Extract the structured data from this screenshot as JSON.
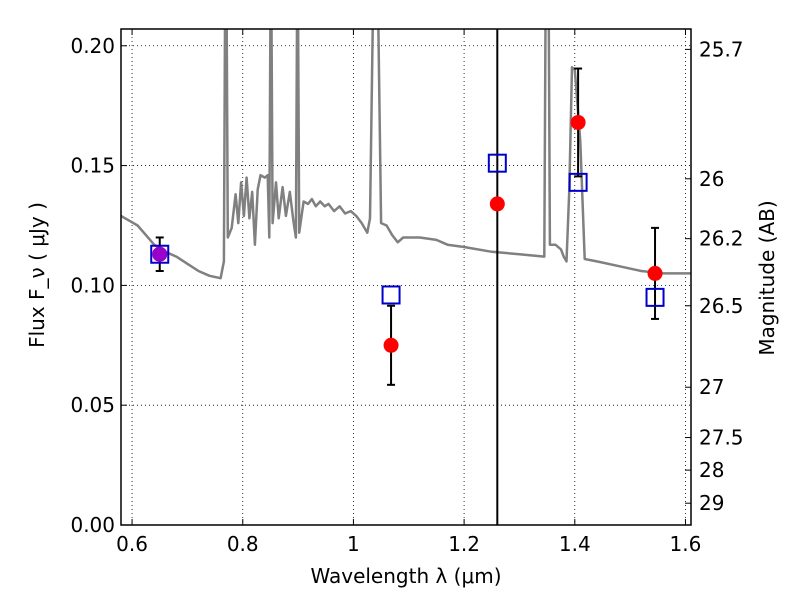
{
  "chart_data": {
    "type": "scatter",
    "xlabel": "Wavelength  λ (μm)",
    "ylabel": "Flux  F_ν  ( μJy )",
    "y2label": "Magnitude (AB)",
    "xlim": [
      0.58,
      1.61
    ],
    "ylim": [
      0.0,
      0.207
    ],
    "xticks": [
      {
        "value": 0.6,
        "label": "0.6"
      },
      {
        "value": 0.8,
        "label": "0.8"
      },
      {
        "value": 1.0,
        "label": "1"
      },
      {
        "value": 1.2,
        "label": "1.2"
      },
      {
        "value": 1.4,
        "label": "1.4"
      },
      {
        "value": 1.6,
        "label": "1.6"
      }
    ],
    "yticks": [
      {
        "value": 0.0,
        "label": "0.00"
      },
      {
        "value": 0.05,
        "label": "0.05"
      },
      {
        "value": 0.1,
        "label": "0.10"
      },
      {
        "value": 0.15,
        "label": "0.15"
      },
      {
        "value": 0.2,
        "label": "0.20"
      }
    ],
    "mag_ticks": [
      {
        "value": 0.1985,
        "label": "25.7"
      },
      {
        "value": 0.1445,
        "label": "26"
      },
      {
        "value": 0.1195,
        "label": "26.2"
      },
      {
        "value": 0.0915,
        "label": "26.5"
      },
      {
        "value": 0.0575,
        "label": "27"
      },
      {
        "value": 0.0365,
        "label": "27.5"
      },
      {
        "value": 0.0229,
        "label": "28"
      },
      {
        "value": 0.0091,
        "label": "29"
      }
    ],
    "grid": true,
    "vline_x": 1.26,
    "model_sed": {
      "color": "#808080",
      "points": [
        [
          0.58,
          0.129
        ],
        [
          0.595,
          0.127
        ],
        [
          0.61,
          0.125
        ],
        [
          0.625,
          0.121
        ],
        [
          0.64,
          0.117
        ],
        [
          0.66,
          0.114
        ],
        [
          0.68,
          0.112
        ],
        [
          0.7,
          0.109
        ],
        [
          0.72,
          0.106
        ],
        [
          0.74,
          0.104
        ],
        [
          0.76,
          0.103
        ],
        [
          0.766,
          0.11
        ],
        [
          0.768,
          0.21
        ],
        [
          0.771,
          0.21
        ],
        [
          0.773,
          0.12
        ],
        [
          0.78,
          0.124
        ],
        [
          0.787,
          0.138
        ],
        [
          0.792,
          0.126
        ],
        [
          0.797,
          0.143
        ],
        [
          0.802,
          0.129
        ],
        [
          0.807,
          0.145
        ],
        [
          0.812,
          0.128
        ],
        [
          0.817,
          0.139
        ],
        [
          0.822,
          0.117
        ],
        [
          0.827,
          0.14
        ],
        [
          0.832,
          0.146
        ],
        [
          0.84,
          0.145
        ],
        [
          0.845,
          0.146
        ],
        [
          0.848,
          0.12
        ],
        [
          0.85,
          0.21
        ],
        [
          0.852,
          0.21
        ],
        [
          0.854,
          0.126
        ],
        [
          0.86,
          0.143
        ],
        [
          0.865,
          0.128
        ],
        [
          0.872,
          0.141
        ],
        [
          0.878,
          0.129
        ],
        [
          0.885,
          0.139
        ],
        [
          0.892,
          0.126
        ],
        [
          0.896,
          0.12
        ],
        [
          0.898,
          0.21
        ],
        [
          0.9,
          0.21
        ],
        [
          0.902,
          0.122
        ],
        [
          0.91,
          0.135
        ],
        [
          0.918,
          0.134
        ],
        [
          0.925,
          0.136
        ],
        [
          0.932,
          0.133
        ],
        [
          0.94,
          0.135
        ],
        [
          0.948,
          0.133
        ],
        [
          0.955,
          0.134
        ],
        [
          0.965,
          0.131
        ],
        [
          0.975,
          0.133
        ],
        [
          0.985,
          0.13
        ],
        [
          0.995,
          0.131
        ],
        [
          1.005,
          0.129
        ],
        [
          1.015,
          0.126
        ],
        [
          1.025,
          0.122
        ],
        [
          1.03,
          0.128
        ],
        [
          1.035,
          0.21
        ],
        [
          1.045,
          0.21
        ],
        [
          1.05,
          0.126
        ],
        [
          1.06,
          0.125
        ],
        [
          1.07,
          0.121
        ],
        [
          1.08,
          0.118
        ],
        [
          1.09,
          0.12
        ],
        [
          1.12,
          0.12
        ],
        [
          1.15,
          0.119
        ],
        [
          1.17,
          0.117
        ],
        [
          1.2,
          0.116
        ],
        [
          1.25,
          0.114
        ],
        [
          1.3,
          0.113
        ],
        [
          1.345,
          0.112
        ],
        [
          1.347,
          0.21
        ],
        [
          1.353,
          0.21
        ],
        [
          1.355,
          0.117
        ],
        [
          1.365,
          0.117
        ],
        [
          1.375,
          0.115
        ],
        [
          1.38,
          0.112
        ],
        [
          1.385,
          0.11
        ],
        [
          1.39,
          0.14
        ],
        [
          1.395,
          0.191
        ],
        [
          1.4,
          0.19
        ],
        [
          1.41,
          0.16
        ],
        [
          1.418,
          0.111
        ],
        [
          1.44,
          0.11
        ],
        [
          1.48,
          0.108
        ],
        [
          1.52,
          0.106
        ],
        [
          1.56,
          0.105
        ],
        [
          1.61,
          0.105
        ]
      ]
    },
    "observed": {
      "color": "#ff0000",
      "points": [
        {
          "x": 0.65,
          "y": 0.113,
          "err": 0.007
        },
        {
          "x": 1.068,
          "y": 0.075,
          "err": 0.0165
        },
        {
          "x": 1.26,
          "y": 0.134,
          "err": null
        },
        {
          "x": 1.406,
          "y": 0.168,
          "err": 0.0225
        },
        {
          "x": 1.545,
          "y": 0.105,
          "err": 0.019
        }
      ]
    },
    "model_band": {
      "color": "#0000cc",
      "points": [
        {
          "x": 0.65,
          "y": 0.113
        },
        {
          "x": 1.068,
          "y": 0.096
        },
        {
          "x": 1.26,
          "y": 0.151
        },
        {
          "x": 1.406,
          "y": 0.143
        },
        {
          "x": 1.545,
          "y": 0.095
        }
      ]
    },
    "highlight_point": {
      "x": 0.65,
      "y": 0.113,
      "color": "#9900cc"
    }
  }
}
